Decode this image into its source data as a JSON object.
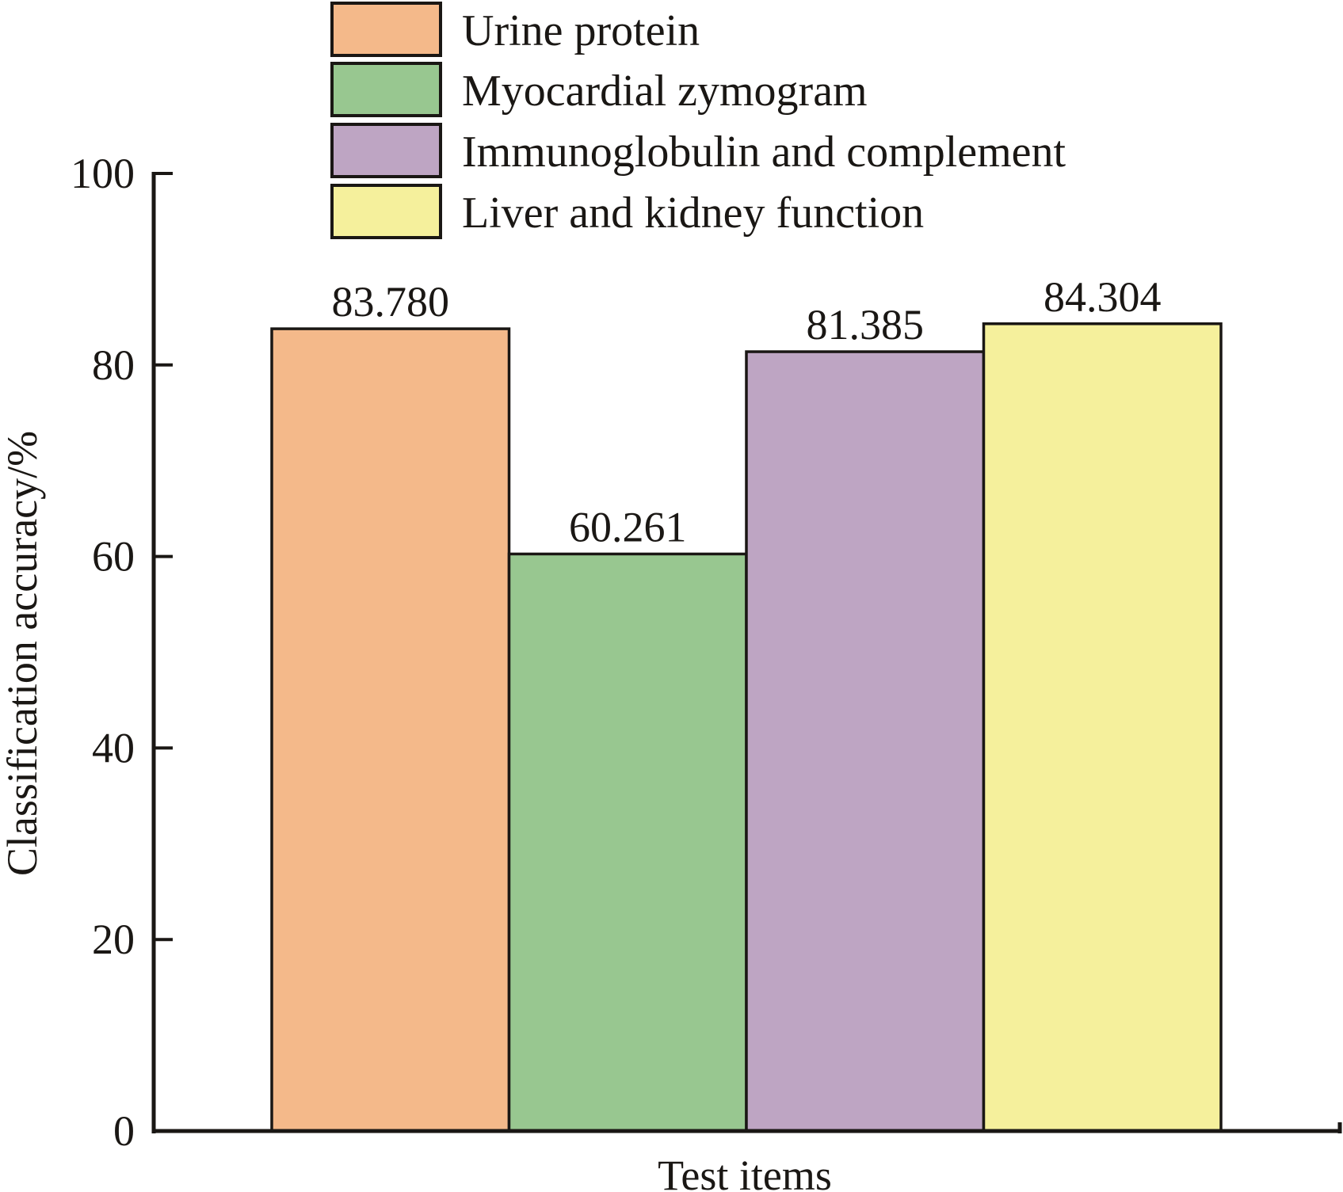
{
  "chart_data": {
    "type": "bar",
    "title": "",
    "xlabel": "Test items",
    "ylabel": "Classification accuracy/%",
    "ylim": [
      0,
      100
    ],
    "yticks": [
      0,
      20,
      40,
      60,
      80,
      100
    ],
    "ytick_labels": [
      "0",
      "20",
      "40",
      "60",
      "80",
      "100"
    ],
    "grid": false,
    "legend_position": "top",
    "categories": [
      "Urine protein",
      "Myocardial zymogram",
      "Immunoglobulin and complement",
      "Liver and kidney function"
    ],
    "series": [
      {
        "name": "Urine protein",
        "value": 83.78,
        "label": "83.780",
        "color": "#f4b98a"
      },
      {
        "name": "Myocardial zymogram",
        "value": 60.261,
        "label": "60.261",
        "color": "#98c790"
      },
      {
        "name": "Immunoglobulin and complement",
        "value": 81.385,
        "label": "81.385",
        "color": "#bea5c3"
      },
      {
        "name": "Liver and kidney function",
        "value": 84.304,
        "label": "84.304",
        "color": "#f5f09c"
      }
    ]
  }
}
